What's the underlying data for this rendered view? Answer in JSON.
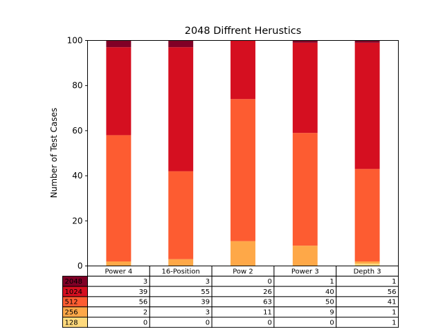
{
  "chart_data": {
    "type": "bar",
    "stacked": true,
    "title": "2048 Diffrent Herustics",
    "xlabel": "",
    "ylabel": "Number of Test Cases",
    "ylim": [
      0,
      100
    ],
    "yticks": [
      0,
      20,
      40,
      60,
      80,
      100
    ],
    "grid": false,
    "categories": [
      "Power 4",
      "16-Position",
      "Pow 2",
      "Power 3",
      "Depth 3"
    ],
    "series": [
      {
        "name": "128",
        "color": "#ffda7d",
        "values": [
          0,
          0,
          0,
          0,
          1
        ]
      },
      {
        "name": "256",
        "color": "#fea848",
        "values": [
          2,
          3,
          11,
          9,
          1
        ]
      },
      {
        "name": "512",
        "color": "#fd5c31",
        "values": [
          56,
          39,
          63,
          50,
          41
        ]
      },
      {
        "name": "1024",
        "color": "#d50f20",
        "values": [
          39,
          55,
          26,
          40,
          56
        ]
      },
      {
        "name": "2048",
        "color": "#800026",
        "values": [
          3,
          3,
          0,
          1,
          1
        ]
      }
    ],
    "table_row_order": [
      "2048",
      "1024",
      "512",
      "256",
      "128"
    ]
  }
}
